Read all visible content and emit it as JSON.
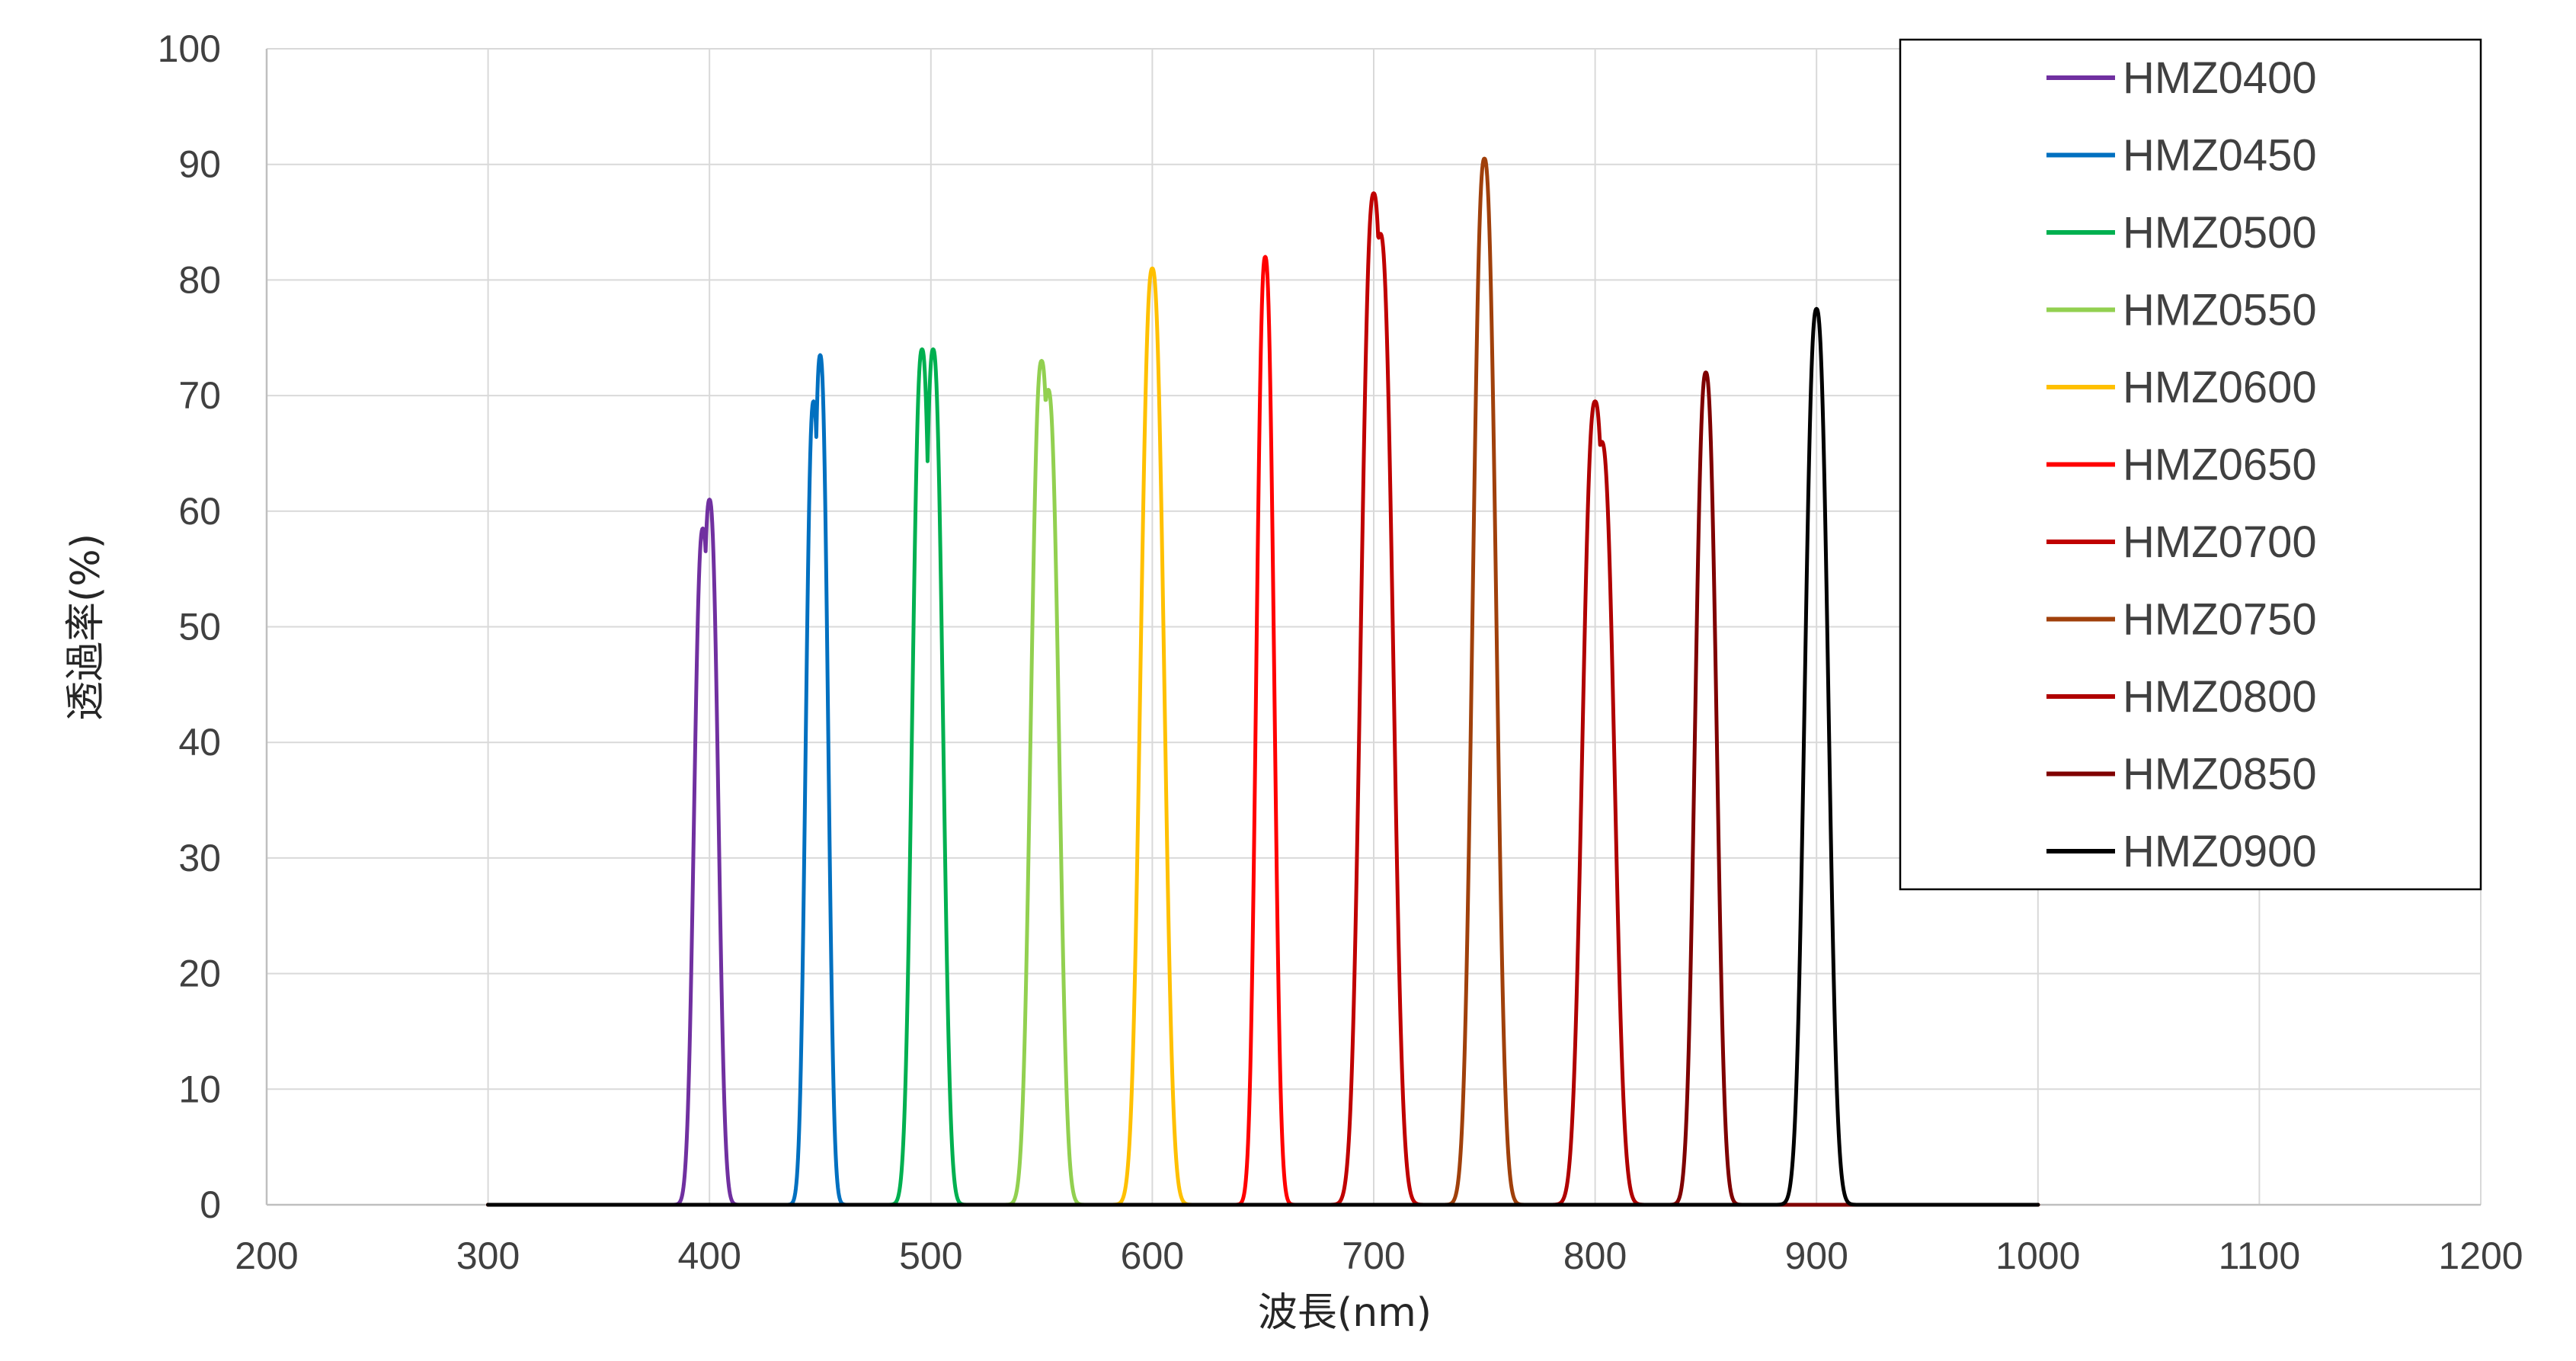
{
  "chart_data": {
    "type": "line",
    "xlabel": "波長(nm)",
    "ylabel": "透過率(%)",
    "xlim": [
      200,
      1200
    ],
    "ylim": [
      0,
      100
    ],
    "x_ticks": [
      "200",
      "300",
      "400",
      "500",
      "600",
      "700",
      "800",
      "900",
      "1000",
      "1100",
      "1200"
    ],
    "y_ticks": [
      "0",
      "10",
      "20",
      "30",
      "40",
      "50",
      "60",
      "70",
      "80",
      "90",
      "100"
    ],
    "grid": true,
    "legend_position": "top-right",
    "x_range_note": "each series spans 300 to 1000 nm",
    "series": [
      {
        "name": "HMZ0400",
        "color": "#7030A0",
        "peaks": [
          [
            397,
            58.5
          ],
          [
            400,
            61
          ]
        ],
        "fwhm": 9,
        "x_start": 300,
        "x_end": 1000
      },
      {
        "name": "HMZ0450",
        "color": "#0070C0",
        "peaks": [
          [
            447,
            69.5
          ],
          [
            450,
            73.5
          ]
        ],
        "fwhm": 8,
        "x_start": 300,
        "x_end": 1000
      },
      {
        "name": "HMZ0500",
        "color": "#00B050",
        "peaks": [
          [
            496,
            74
          ],
          [
            501,
            74
          ]
        ],
        "fwhm": 10,
        "x_start": 300,
        "x_end": 1000
      },
      {
        "name": "HMZ0550",
        "color": "#92D050",
        "peaks": [
          [
            550,
            73
          ],
          [
            553,
            70.5
          ]
        ],
        "fwhm": 11,
        "x_start": 300,
        "x_end": 1000
      },
      {
        "name": "HMZ0600",
        "color": "#FFC000",
        "peaks": [
          [
            600,
            81
          ]
        ],
        "fwhm": 12,
        "x_start": 300,
        "x_end": 1000
      },
      {
        "name": "HMZ0650",
        "color": "#FF0000",
        "peaks": [
          [
            651,
            82
          ]
        ],
        "fwhm": 9,
        "x_start": 300,
        "x_end": 1000
      },
      {
        "name": "HMZ0700",
        "color": "#C00000",
        "peaks": [
          [
            700,
            87.5
          ],
          [
            703,
            84
          ]
        ],
        "fwhm": 13,
        "x_start": 300,
        "x_end": 1000
      },
      {
        "name": "HMZ0750",
        "color": "#A0400B",
        "peaks": [
          [
            750,
            90.5
          ]
        ],
        "fwhm": 12,
        "x_start": 300,
        "x_end": 1000
      },
      {
        "name": "HMZ0800",
        "color": "#B00000",
        "peaks": [
          [
            800,
            69.5
          ],
          [
            803,
            66
          ]
        ],
        "fwhm": 13,
        "x_start": 300,
        "x_end": 1000
      },
      {
        "name": "HMZ0850",
        "color": "#7F0000",
        "peaks": [
          [
            850,
            72
          ]
        ],
        "fwhm": 11,
        "x_start": 300,
        "x_end": 1000
      },
      {
        "name": "HMZ0900",
        "color": "#000000",
        "peaks": [
          [
            900,
            77.5
          ]
        ],
        "fwhm": 12,
        "x_start": 300,
        "x_end": 1000
      }
    ]
  },
  "colors": {
    "gridline": "#D9D9D9",
    "frame": "#BFBFBF",
    "legend_border": "#000000"
  }
}
